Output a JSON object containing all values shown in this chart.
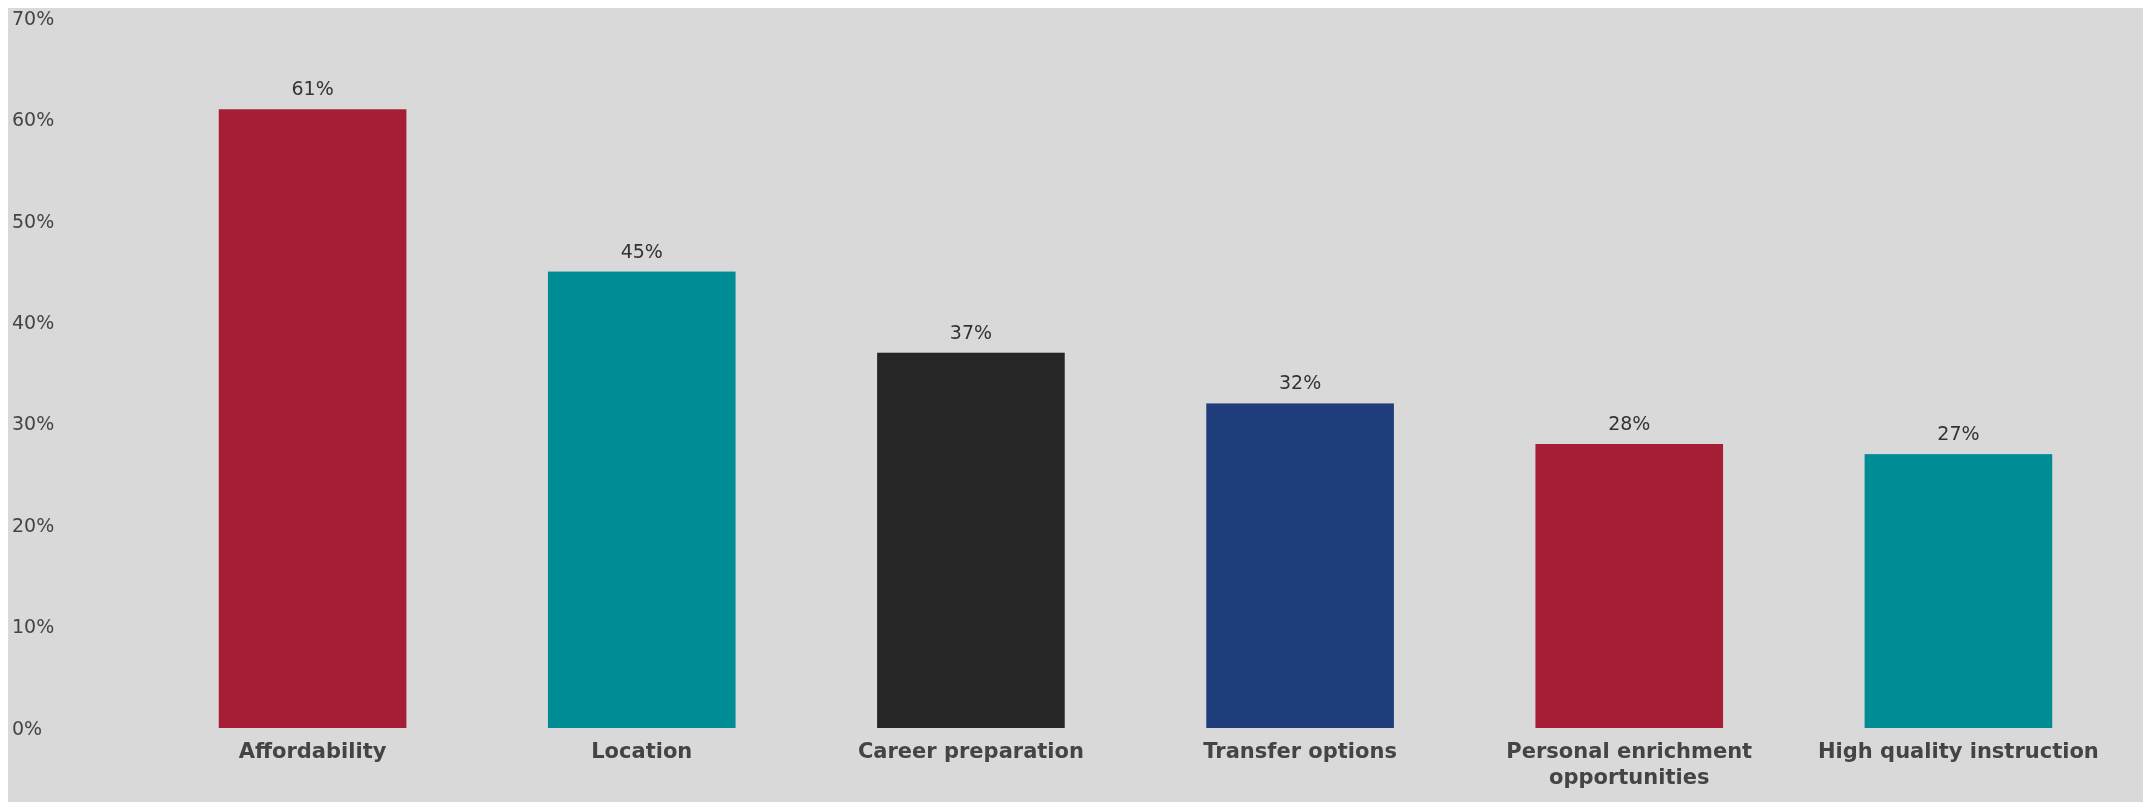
{
  "chart_data": {
    "type": "bar",
    "categories": [
      "Affordability",
      "Location",
      "Career preparation",
      "Transfer options",
      "Personal enrichment opportunities",
      "High quality instruction"
    ],
    "values": [
      61,
      45,
      37,
      32,
      28,
      27
    ],
    "colors": [
      "#a51e36",
      "#008c95",
      "#262626",
      "#1f3d7a",
      "#a51e36",
      "#008c95"
    ],
    "value_labels": [
      "61%",
      "45%",
      "37%",
      "32%",
      "28%",
      "27%"
    ],
    "ylim": [
      0,
      70
    ],
    "yticks": [
      {
        "value": 0,
        "label": "0%"
      },
      {
        "value": 10,
        "label": "10%"
      },
      {
        "value": 20,
        "label": "20%"
      },
      {
        "value": 30,
        "label": "30%"
      },
      {
        "value": 40,
        "label": "40%"
      },
      {
        "value": 50,
        "label": "50%"
      },
      {
        "value": 60,
        "label": "60%"
      },
      {
        "value": 70,
        "label": "70%"
      }
    ],
    "grid": false
  }
}
